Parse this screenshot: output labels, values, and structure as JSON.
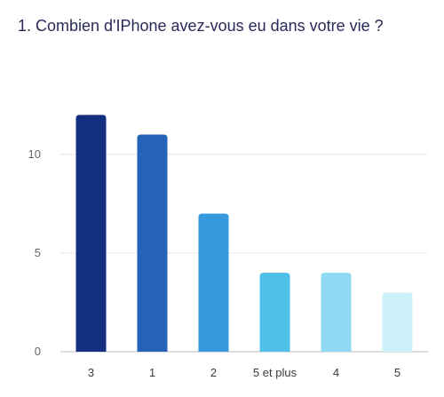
{
  "chart_data": {
    "type": "bar",
    "title": "1. Combien d'IPhone avez-vous eu dans votre vie ?",
    "xlabel": "",
    "ylabel": "",
    "categories": [
      "3",
      "1",
      "2",
      "5 et plus",
      "4",
      "5"
    ],
    "values": [
      12,
      11,
      7,
      4,
      4,
      3
    ],
    "colors": [
      "#142f80",
      "#2563b8",
      "#3799dd",
      "#4fc0ea",
      "#8fdaf2",
      "#ccf0f8"
    ],
    "ylim": [
      0,
      12.6
    ],
    "yticks": [
      0,
      5,
      10
    ],
    "grid": true,
    "legend": "none"
  }
}
